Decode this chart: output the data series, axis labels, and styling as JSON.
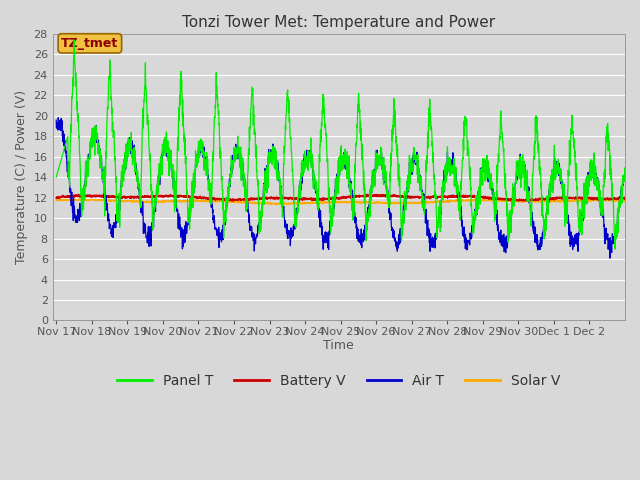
{
  "title": "Tonzi Tower Met: Temperature and Power",
  "ylabel": "Temperature (C) / Power (V)",
  "xlabel": "Time",
  "annotation": "TZ_tmet",
  "ylim": [
    0,
    28
  ],
  "yticks": [
    0,
    2,
    4,
    6,
    8,
    10,
    12,
    14,
    16,
    18,
    20,
    22,
    24,
    26,
    28
  ],
  "fig_bg_color": "#d8d8d8",
  "plot_bg_color": "#d8d8d8",
  "grid_color": "#ffffff",
  "colors": {
    "panel_t": "#00ee00",
    "battery_v": "#cc0000",
    "air_t": "#0000cc",
    "solar_v": "#ffaa00"
  },
  "legend_labels": [
    "Panel T",
    "Battery V",
    "Air T",
    "Solar V"
  ],
  "title_fontsize": 11,
  "axis_fontsize": 9,
  "tick_fontsize": 8
}
